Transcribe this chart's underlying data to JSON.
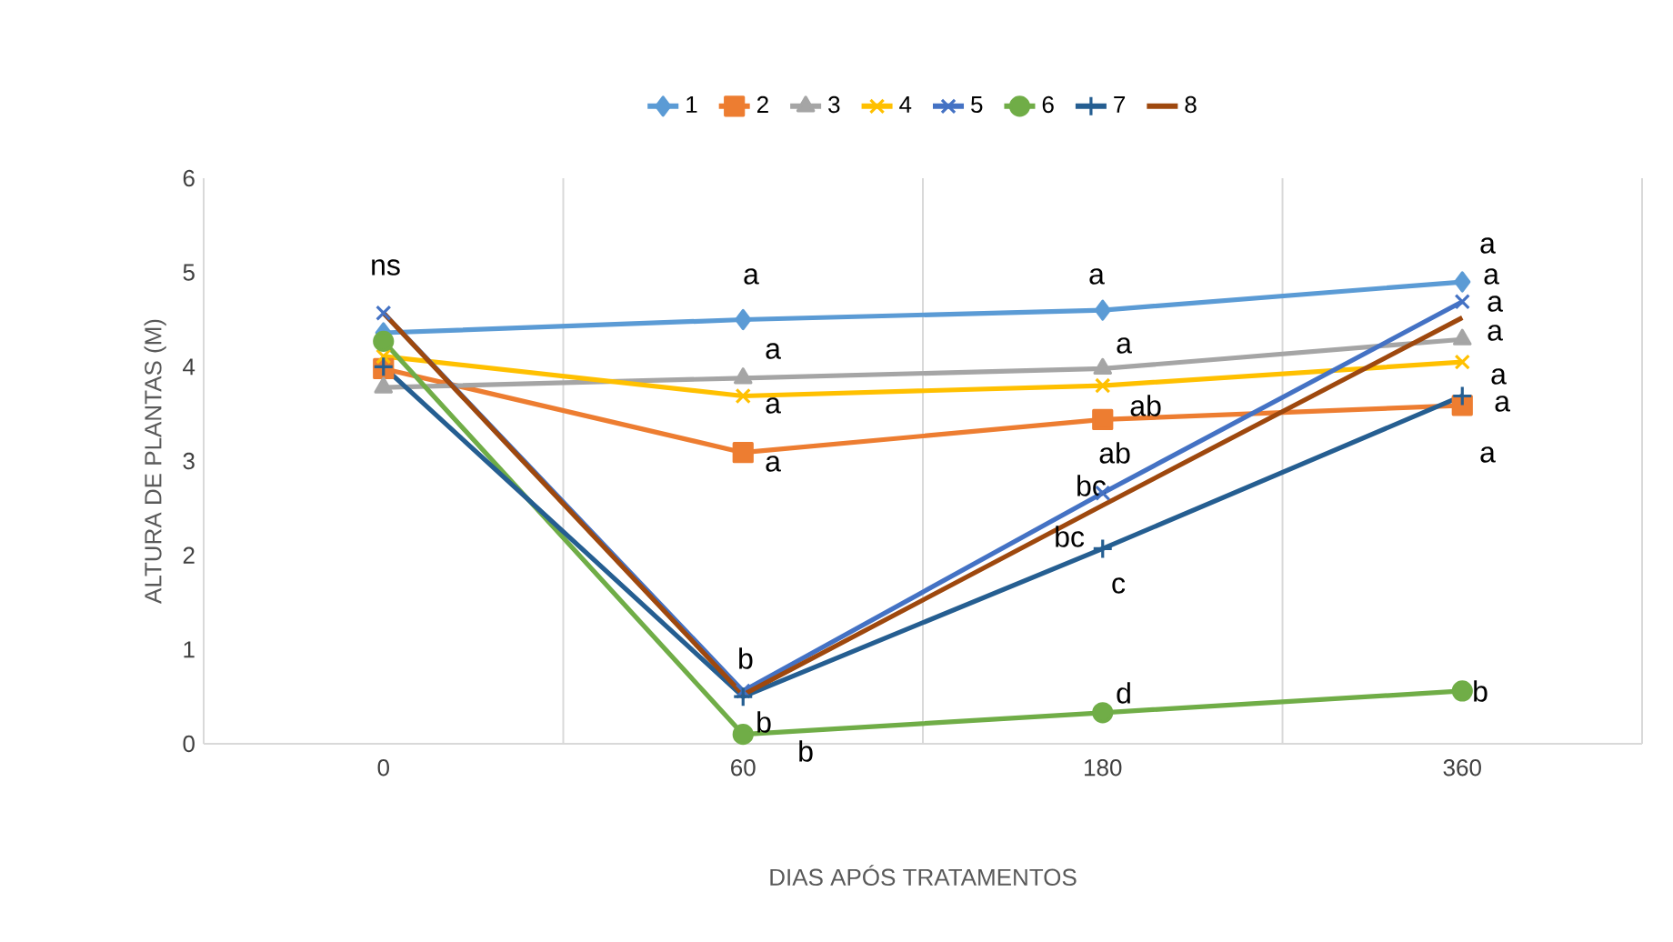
{
  "chart_data": {
    "type": "line",
    "xlabel": "DIAS APÓS TRATAMENTOS",
    "ylabel": "ALTURA DE PLANTAS (M)",
    "categories": [
      "0",
      "60",
      "180",
      "360"
    ],
    "ylim": [
      0,
      6
    ],
    "yticks": [
      0,
      1,
      2,
      3,
      4,
      5,
      6
    ],
    "grid": "x",
    "legend": "top",
    "series": [
      {
        "name": "1",
        "color": "#5b9bd5",
        "marker": "diamond",
        "values": [
          4.36,
          4.5,
          4.6,
          4.9
        ]
      },
      {
        "name": "2",
        "color": "#ed7d31",
        "marker": "square",
        "values": [
          3.98,
          3.09,
          3.44,
          3.59
        ]
      },
      {
        "name": "3",
        "color": "#a5a5a5",
        "marker": "triangle",
        "values": [
          3.78,
          3.88,
          3.98,
          4.29
        ]
      },
      {
        "name": "4",
        "color": "#ffc000",
        "marker": "cross",
        "values": [
          4.11,
          3.69,
          3.8,
          4.05
        ]
      },
      {
        "name": "5",
        "color": "#4472c4",
        "marker": "cross",
        "values": [
          4.57,
          0.56,
          2.66,
          4.69
        ]
      },
      {
        "name": "6",
        "color": "#70ad47",
        "marker": "circle",
        "values": [
          4.27,
          0.1,
          0.33,
          0.56
        ]
      },
      {
        "name": "7",
        "color": "#255e91",
        "marker": "plus",
        "values": [
          4.0,
          0.5,
          2.07,
          3.69
        ]
      },
      {
        "name": "8",
        "color": "#9e480e",
        "marker": "none",
        "values": [
          4.57,
          0.52,
          2.53,
          4.52
        ]
      }
    ],
    "annotations": [
      "ns",
      "a",
      "a",
      "a",
      "a",
      "b",
      "b",
      "b",
      "a",
      "a",
      "ab",
      "ab",
      "bc",
      "bc",
      "c",
      "d",
      "a",
      "a",
      "a",
      "a",
      "a",
      "a",
      "a",
      "b"
    ]
  }
}
